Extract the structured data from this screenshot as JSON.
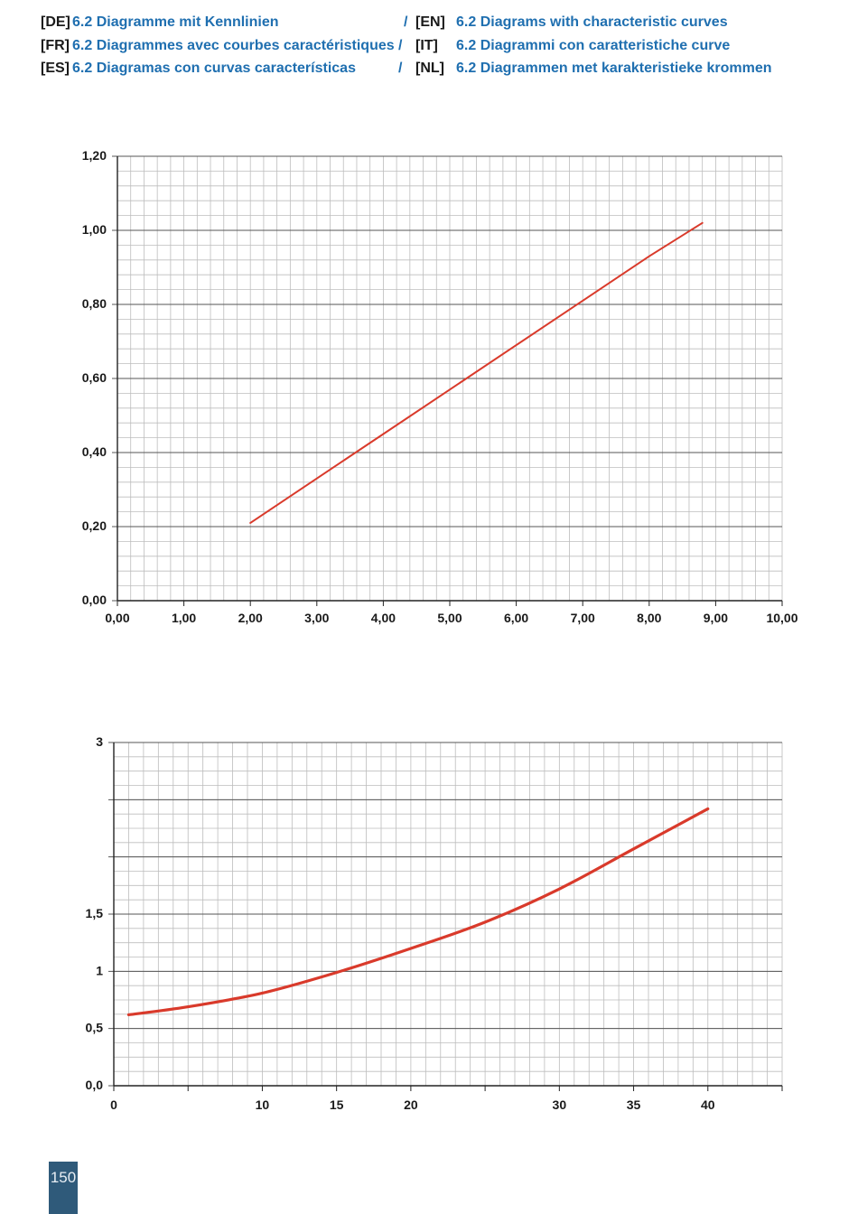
{
  "header": {
    "rows": [
      {
        "code_left": "[DE]",
        "title_left": "6.2 Diagramme mit Kennlinien",
        "separator": "/",
        "code_right": "[EN]",
        "title_right": "6.2 Diagrams with characteristic curves"
      },
      {
        "code_left": "[FR]",
        "title_left": "6.2 Diagrammes avec courbes caractéristiques",
        "separator": "/",
        "code_right": "[IT]",
        "title_right": "6.2 Diagrammi con caratteristiche curve"
      },
      {
        "code_left": "[ES]",
        "title_left": "6.2 Diagramas con curvas características",
        "separator": "/",
        "code_right": "[NL]",
        "title_right": "6.2 Diagrammen met karakteristieke krommen"
      }
    ]
  },
  "colors": {
    "title_blue": "#1f6fb0",
    "curve_red": "#d93a2b",
    "grid_minor": "#bdbdbd",
    "grid_major": "#555555",
    "page_tab": "#2f5a7a"
  },
  "chart_data": [
    {
      "type": "line",
      "title": "",
      "xlabel": "",
      "ylabel": "",
      "xlim": [
        0,
        10
      ],
      "ylim": [
        0,
        1.2
      ],
      "grid": true,
      "x_ticks": [
        {
          "v": 0,
          "label": "0,00"
        },
        {
          "v": 1,
          "label": "1,00"
        },
        {
          "v": 2,
          "label": "2,00"
        },
        {
          "v": 3,
          "label": "3,00"
        },
        {
          "v": 4,
          "label": "4,00"
        },
        {
          "v": 5,
          "label": "5,00"
        },
        {
          "v": 6,
          "label": "6,00"
        },
        {
          "v": 7,
          "label": "7,00"
        },
        {
          "v": 8,
          "label": "8,00"
        },
        {
          "v": 9,
          "label": "9,00"
        },
        {
          "v": 10,
          "label": "10,00"
        }
      ],
      "y_ticks": [
        {
          "v": 0,
          "label": "0,00"
        },
        {
          "v": 0.2,
          "label": "0,20"
        },
        {
          "v": 0.4,
          "label": "0,40"
        },
        {
          "v": 0.6,
          "label": "0,60"
        },
        {
          "v": 0.8,
          "label": "0,80"
        },
        {
          "v": 1.0,
          "label": "1,00"
        },
        {
          "v": 1.2,
          "label": "1,20"
        }
      ],
      "series": [
        {
          "x": [
            2.0,
            3.0,
            4.0,
            5.0,
            6.0,
            7.0,
            8.0,
            8.8
          ],
          "y": [
            0.21,
            0.33,
            0.45,
            0.57,
            0.69,
            0.81,
            0.93,
            1.02
          ]
        }
      ]
    },
    {
      "type": "line",
      "title": "",
      "xlabel": "",
      "ylabel": "",
      "xlim": [
        0,
        45
      ],
      "ylim": [
        0,
        3
      ],
      "grid": true,
      "x_ticks": [
        {
          "v": 0,
          "label": "0"
        },
        {
          "v": 5,
          "label": ""
        },
        {
          "v": 10,
          "label": "10"
        },
        {
          "v": 15,
          "label": "15"
        },
        {
          "v": 20,
          "label": "20"
        },
        {
          "v": 25,
          "label": ""
        },
        {
          "v": 30,
          "label": "30"
        },
        {
          "v": 35,
          "label": "35"
        },
        {
          "v": 40,
          "label": "40"
        },
        {
          "v": 45,
          "label": ""
        }
      ],
      "y_ticks": [
        {
          "v": 0,
          "label": "0,0"
        },
        {
          "v": 0.5,
          "label": "0,5"
        },
        {
          "v": 1.0,
          "label": "1"
        },
        {
          "v": 1.5,
          "label": "1,5"
        },
        {
          "v": 2.0,
          "label": ""
        },
        {
          "v": 2.5,
          "label": ""
        },
        {
          "v": 3.0,
          "label": "3"
        }
      ],
      "series": [
        {
          "x": [
            1,
            5,
            10,
            15,
            20,
            25,
            30,
            35,
            40
          ],
          "y": [
            0.62,
            0.69,
            0.81,
            0.99,
            1.2,
            1.43,
            1.72,
            2.07,
            2.42
          ]
        }
      ]
    }
  ],
  "page_number": "150"
}
